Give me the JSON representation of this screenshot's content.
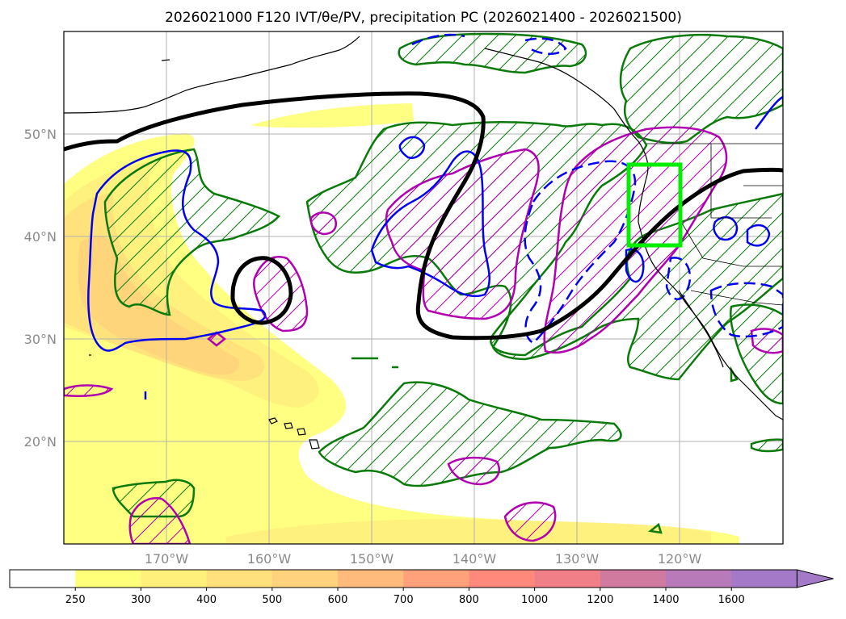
{
  "title": "2026021000 F120 IVT/θe/PV, precipitation PC (2026021400 - 2026021500)",
  "map": {
    "lon_range": [
      -180,
      -110
    ],
    "lat_range": [
      10,
      60
    ],
    "lat_ticks": [
      {
        "value": 20,
        "label": "20°N"
      },
      {
        "value": 30,
        "label": "30°N"
      },
      {
        "value": 40,
        "label": "40°N"
      },
      {
        "value": 50,
        "label": "50°N"
      }
    ],
    "lon_ticks": [
      {
        "value": -170,
        "label": "170°W"
      },
      {
        "value": -160,
        "label": "160°W"
      },
      {
        "value": -150,
        "label": "150°W"
      },
      {
        "value": -140,
        "label": "140°W"
      },
      {
        "value": -130,
        "label": "130°W"
      },
      {
        "value": -120,
        "label": "120°W"
      }
    ],
    "gridlines": true,
    "highlight_box": {
      "lon": [
        -125,
        -120
      ],
      "lat": [
        39,
        47
      ],
      "color": "#00ee00"
    }
  },
  "colorbar": {
    "levels": [
      "250",
      "300",
      "400",
      "500",
      "600",
      "700",
      "800",
      "1000",
      "1200",
      "1400",
      "1600"
    ],
    "colors": [
      "#ffffff",
      "#ffff7a",
      "#fff07c",
      "#ffe07c",
      "#ffd27d",
      "#ffbb7c",
      "#ffa27c",
      "#ff8a7c",
      "#f07f88",
      "#d17aa0",
      "#b87ab8",
      "#a47ac8"
    ],
    "extend": "max"
  }
}
